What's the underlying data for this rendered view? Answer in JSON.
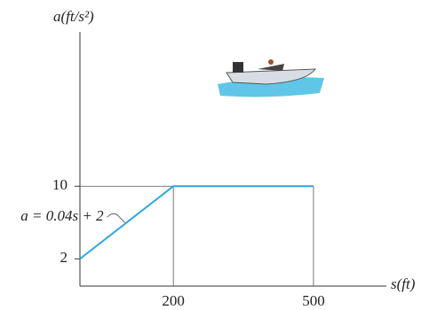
{
  "chart_data": {
    "type": "line",
    "y_label": "a(ft/s²)",
    "x_label": "s(ft)",
    "annotation": "a = 0.04s + 2",
    "x": [
      0,
      200,
      500
    ],
    "series": [
      {
        "values": [
          2,
          10,
          10
        ],
        "color": "#29a8e0"
      }
    ],
    "xlim": [
      0,
      656
    ],
    "ylim": [
      -1,
      27
    ],
    "xticks": [
      200,
      500
    ],
    "yticks": [
      2,
      10
    ]
  }
}
